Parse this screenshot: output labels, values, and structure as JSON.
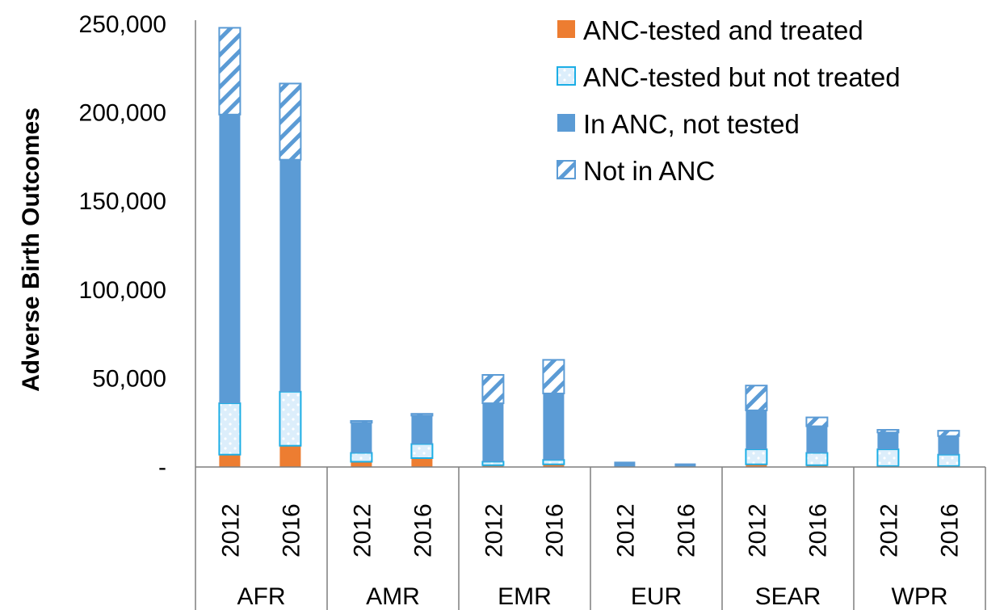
{
  "chart_data": {
    "type": "bar",
    "stacked": true,
    "ylabel": "Adverse Birth Outcomes",
    "ylim": [
      0,
      250000
    ],
    "yticks": [
      {
        "value": 0,
        "label": "-"
      },
      {
        "value": 50000,
        "label": "50,000"
      },
      {
        "value": 100000,
        "label": "100,000"
      },
      {
        "value": 150000,
        "label": "150,000"
      },
      {
        "value": 200000,
        "label": "200,000"
      },
      {
        "value": 250000,
        "label": "250,000"
      }
    ],
    "groups": [
      {
        "name": "AFR",
        "years": [
          "2012",
          "2016"
        ]
      },
      {
        "name": "AMR",
        "years": [
          "2012",
          "2016"
        ]
      },
      {
        "name": "EMR",
        "years": [
          "2012",
          "2016"
        ]
      },
      {
        "name": "EUR",
        "years": [
          "2012",
          "2016"
        ]
      },
      {
        "name": "SEAR",
        "years": [
          "2012",
          "2016"
        ]
      },
      {
        "name": "WPR",
        "years": [
          "2012",
          "2016"
        ]
      }
    ],
    "legend_position": "top-right",
    "series": [
      {
        "name": "ANC-tested and treated",
        "pattern": "solid-orange",
        "values": [
          7000,
          12000,
          3000,
          5000,
          1000,
          1500,
          0,
          0,
          1500,
          1000,
          500,
          500
        ]
      },
      {
        "name": "ANC-tested but not treated",
        "pattern": "dotted",
        "values": [
          29000,
          30500,
          5000,
          8000,
          2000,
          2500,
          0,
          0,
          8500,
          7000,
          9500,
          6500
        ]
      },
      {
        "name": "In ANC, not tested",
        "pattern": "solid-blue",
        "values": [
          163000,
          131000,
          17000,
          16000,
          33000,
          37500,
          3000,
          2000,
          22000,
          15000,
          9500,
          10500
        ]
      },
      {
        "name": "Not in ANC",
        "pattern": "hatched",
        "values": [
          49000,
          43000,
          1000,
          1000,
          16000,
          19000,
          0,
          0,
          14000,
          5000,
          1500,
          3000
        ]
      }
    ],
    "colors": {
      "orange": "#ED7D31",
      "blue": "#5B9BD5",
      "dotted_fill": "#DCEEFB",
      "dotted_border": "#1CAEE5",
      "hatch_line": "#5B9BD5"
    }
  }
}
